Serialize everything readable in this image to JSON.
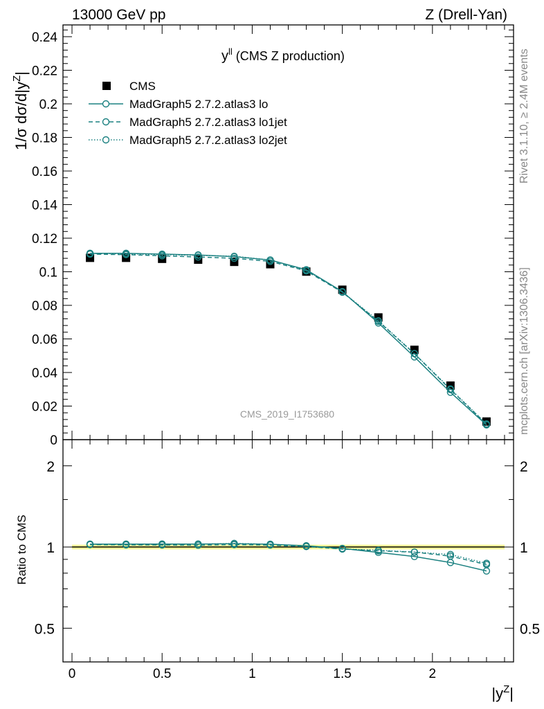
{
  "header": {
    "left": "13000 GeV pp",
    "right": "Z (Drell-Yan)"
  },
  "side_labels": {
    "rivet": "Rivet 3.1.10, ≥ 2.4M events",
    "mcplots": "mcplots.cern.ch [arXiv:1306.3436]"
  },
  "watermark": "CMS_2019_I1753680",
  "plot_title": {
    "main": "y",
    "sup": "ll",
    "rest": " (CMS Z production)"
  },
  "axes": {
    "ylabel_top": "1/σ dσ/d|y",
    "ylabel_top_sup": "Z",
    "ylabel_top_end": "|",
    "ylabel_bottom": "Ratio to CMS",
    "xlabel": "|y",
    "xlabel_sup": "Z",
    "xlabel_end": "|"
  },
  "colors": {
    "data": "#000000",
    "mc": "#1a8080",
    "band": "#ffff99",
    "band_edge": "#d8f090"
  },
  "chart_data": [
    {
      "type": "scatter",
      "panel": "main",
      "xlim": [
        -0.05,
        2.45
      ],
      "ylim": [
        0,
        0.247
      ],
      "yticks": [
        0,
        0.02,
        0.04,
        0.06,
        0.08,
        0.1,
        0.12,
        0.14,
        0.16,
        0.18,
        0.2,
        0.22,
        0.24
      ],
      "ytick_labels": [
        "0",
        "0.02",
        "0.04",
        "0.06",
        "0.08",
        "0.1",
        "0.12",
        "0.14",
        "0.16",
        "0.18",
        "0.2",
        "0.22",
        "0.24"
      ],
      "x": [
        0.1,
        0.3,
        0.5,
        0.7,
        0.9,
        1.1,
        1.3,
        1.5,
        1.7,
        1.9,
        2.1,
        2.3
      ],
      "legend_position": "top-left",
      "series": [
        {
          "name": "CMS",
          "marker": "square",
          "style": "marker",
          "values": [
            0.1083,
            0.1083,
            0.1077,
            0.1072,
            0.1059,
            0.1045,
            0.1001,
            0.0893,
            0.0728,
            0.0535,
            0.0322,
            0.0108
          ]
        },
        {
          "name": "MadGraph5 2.7.2.atlas3 lo",
          "marker": "circle",
          "style": "solid",
          "values": [
            0.111,
            0.111,
            0.1105,
            0.11,
            0.109,
            0.107,
            0.1012,
            0.0882,
            0.0695,
            0.0493,
            0.0282,
            0.0088
          ]
        },
        {
          "name": "MadGraph5 2.7.2.atlas3 lo1jet",
          "marker": "circle",
          "style": "dashed",
          "values": [
            0.1105,
            0.1102,
            0.1095,
            0.1088,
            0.108,
            0.1062,
            0.1005,
            0.0878,
            0.0705,
            0.0512,
            0.0298,
            0.0093
          ]
        },
        {
          "name": "MadGraph5 2.7.2.atlas3 lo2jet",
          "marker": "circle",
          "style": "dotted",
          "values": [
            0.1108,
            0.1107,
            0.1102,
            0.1098,
            0.1092,
            0.107,
            0.1008,
            0.088,
            0.0708,
            0.0513,
            0.0302,
            0.0094
          ]
        }
      ]
    },
    {
      "type": "scatter",
      "panel": "ratio",
      "ylabel": "Ratio to CMS",
      "ylog": true,
      "ylim": [
        0.375,
        2.5
      ],
      "yticks": [
        0.5,
        1,
        2
      ],
      "ytick_labels": [
        "0.5",
        "1",
        "2"
      ],
      "xticks": [
        0,
        0.5,
        1,
        1.5,
        2
      ],
      "xtick_labels": [
        "0",
        "0.5",
        "1",
        "1.5",
        "2"
      ],
      "x": [
        0.1,
        0.3,
        0.5,
        0.7,
        0.9,
        1.1,
        1.3,
        1.5,
        1.7,
        1.9,
        2.1,
        2.3
      ],
      "band_halfwidth": 0.02,
      "series": [
        {
          "name": "MadGraph5 2.7.2.atlas3 lo",
          "style": "solid",
          "values": [
            1.025,
            1.025,
            1.026,
            1.026,
            1.029,
            1.024,
            1.011,
            0.988,
            0.955,
            0.922,
            0.876,
            0.815
          ]
        },
        {
          "name": "MadGraph5 2.7.2.atlas3 lo1jet",
          "style": "dashed",
          "values": [
            1.02,
            1.018,
            1.017,
            1.015,
            1.02,
            1.016,
            1.004,
            0.983,
            0.968,
            0.957,
            0.925,
            0.861
          ]
        },
        {
          "name": "MadGraph5 2.7.2.atlas3 lo2jet",
          "style": "dotted",
          "values": [
            1.023,
            1.022,
            1.023,
            1.024,
            1.031,
            1.024,
            1.007,
            0.985,
            0.972,
            0.958,
            0.938,
            0.87
          ]
        }
      ]
    }
  ]
}
